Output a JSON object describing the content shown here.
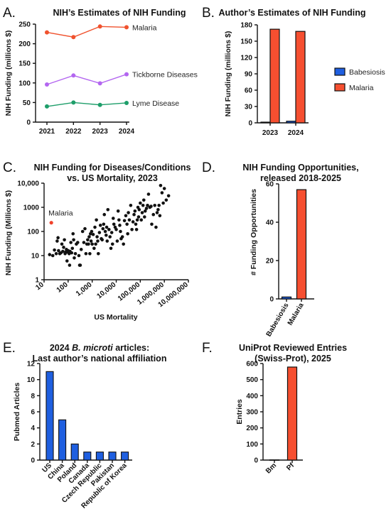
{
  "panel_labels": [
    "A.",
    "B.",
    "C.",
    "D.",
    "E.",
    "F."
  ],
  "chart_data": [
    {
      "id": "A",
      "type": "line",
      "title": "NIH’s Estimates of NIH Funding",
      "xlabel": "",
      "ylabel": "NIH Funding (millions $)",
      "categories": [
        "2021",
        "2022",
        "2023",
        "2024"
      ],
      "ylim": [
        0,
        250
      ],
      "yticks": [
        0,
        50,
        100,
        150,
        200,
        250
      ],
      "series": [
        {
          "name": "Malaria",
          "color": "#f0522e",
          "values": [
            229,
            217,
            244,
            242
          ]
        },
        {
          "name": "Tickborne Diseases",
          "color": "#b366f0",
          "values": [
            96,
            119,
            99,
            122
          ]
        },
        {
          "name": "Lyme Disease",
          "color": "#1e9e6a",
          "values": [
            40,
            50,
            44,
            49
          ]
        }
      ]
    },
    {
      "id": "B",
      "type": "bar",
      "title": "Author’s Estimates of NIH Funding",
      "xlabel": "",
      "ylabel": "NIH Funding (millions $)",
      "categories": [
        "2023",
        "2024"
      ],
      "ylim": [
        0,
        180
      ],
      "yticks": [
        0,
        30,
        60,
        90,
        120,
        150,
        180
      ],
      "legend_position": "right",
      "series": [
        {
          "name": "Babesiosis",
          "color": "#1f5fe0",
          "values": [
            1.3,
            3.0
          ]
        },
        {
          "name": "Malaria",
          "color": "#f64f30",
          "values": [
            172,
            168
          ]
        }
      ]
    },
    {
      "id": "C",
      "type": "scatter",
      "title": "NIH Funding for Diseases/Conditions",
      "subtitle": "vs. US Mortality, 2023",
      "xlabel": "US Mortality",
      "ylabel": "NIH Funding (Millions $)",
      "xscale": "log",
      "yscale": "log",
      "xlim": [
        10,
        10000000
      ],
      "ylim": [
        1,
        10000
      ],
      "xticks": [
        "10",
        "100",
        "1,000",
        "10,000",
        "100,000",
        "1,000,000",
        "10,000,000"
      ],
      "yticks": [
        "1",
        "10",
        "100",
        "1000",
        "10,000"
      ],
      "highlight": {
        "label": "Malaria",
        "color": "#f0412a",
        "x": 20,
        "y": 230
      },
      "points": [
        [
          17,
          11
        ],
        [
          23,
          10
        ],
        [
          27,
          17
        ],
        [
          32,
          12
        ],
        [
          35,
          40
        ],
        [
          38,
          55
        ],
        [
          40,
          16
        ],
        [
          45,
          12
        ],
        [
          50,
          13
        ],
        [
          55,
          30
        ],
        [
          60,
          15
        ],
        [
          65,
          22
        ],
        [
          70,
          45
        ],
        [
          75,
          12
        ],
        [
          80,
          14
        ],
        [
          85,
          18
        ],
        [
          90,
          6
        ],
        [
          95,
          14
        ],
        [
          100,
          16
        ],
        [
          110,
          12
        ],
        [
          115,
          4
        ],
        [
          120,
          15
        ],
        [
          130,
          35
        ],
        [
          140,
          13
        ],
        [
          150,
          20
        ],
        [
          160,
          80
        ],
        [
          170,
          45
        ],
        [
          180,
          8
        ],
        [
          200,
          12
        ],
        [
          220,
          30
        ],
        [
          250,
          35
        ],
        [
          280,
          10
        ],
        [
          300,
          4
        ],
        [
          320,
          4
        ],
        [
          350,
          18
        ],
        [
          400,
          100
        ],
        [
          450,
          35
        ],
        [
          500,
          130
        ],
        [
          550,
          12
        ],
        [
          600,
          30
        ],
        [
          650,
          45
        ],
        [
          700,
          30
        ],
        [
          750,
          60
        ],
        [
          800,
          12
        ],
        [
          850,
          80
        ],
        [
          900,
          40
        ],
        [
          950,
          100
        ],
        [
          1000,
          30
        ],
        [
          1100,
          75
        ],
        [
          1200,
          20
        ],
        [
          1300,
          150
        ],
        [
          1400,
          30
        ],
        [
          1500,
          300
        ],
        [
          1600,
          60
        ],
        [
          1700,
          40
        ],
        [
          1800,
          12
        ],
        [
          2000,
          90
        ],
        [
          2200,
          180
        ],
        [
          2400,
          50
        ],
        [
          2600,
          45
        ],
        [
          2800,
          130
        ],
        [
          3000,
          200
        ],
        [
          3200,
          500
        ],
        [
          3500,
          100
        ],
        [
          3800,
          70
        ],
        [
          4000,
          150
        ],
        [
          4200,
          40
        ],
        [
          4500,
          800
        ],
        [
          5000,
          120
        ],
        [
          5500,
          60
        ],
        [
          6000,
          20
        ],
        [
          6500,
          90
        ],
        [
          7000,
          30
        ],
        [
          7500,
          350
        ],
        [
          8000,
          200
        ],
        [
          9000,
          150
        ],
        [
          10000,
          120
        ],
        [
          11000,
          40
        ],
        [
          12000,
          700
        ],
        [
          13000,
          300
        ],
        [
          14000,
          180
        ],
        [
          15000,
          100
        ],
        [
          16000,
          50
        ],
        [
          18000,
          60
        ],
        [
          20000,
          30
        ],
        [
          22000,
          280
        ],
        [
          25000,
          450
        ],
        [
          28000,
          200
        ],
        [
          30000,
          80
        ],
        [
          32000,
          600
        ],
        [
          35000,
          300
        ],
        [
          40000,
          1200
        ],
        [
          45000,
          120
        ],
        [
          50000,
          250
        ],
        [
          55000,
          500
        ],
        [
          60000,
          700
        ],
        [
          65000,
          200
        ],
        [
          70000,
          120
        ],
        [
          75000,
          300
        ],
        [
          80000,
          1000
        ],
        [
          85000,
          400
        ],
        [
          90000,
          800
        ],
        [
          100000,
          1500
        ],
        [
          110000,
          300
        ],
        [
          120000,
          600
        ],
        [
          130000,
          1200
        ],
        [
          140000,
          2000
        ],
        [
          150000,
          400
        ],
        [
          160000,
          700
        ],
        [
          180000,
          900
        ],
        [
          200000,
          1200
        ],
        [
          220000,
          3500
        ],
        [
          250000,
          1000
        ],
        [
          280000,
          1100
        ],
        [
          300000,
          200
        ],
        [
          350000,
          500
        ],
        [
          400000,
          1200
        ],
        [
          450000,
          150
        ],
        [
          500000,
          600
        ],
        [
          550000,
          800
        ],
        [
          600000,
          1200
        ],
        [
          650000,
          450
        ],
        [
          700000,
          8000
        ],
        [
          800000,
          4000
        ],
        [
          900000,
          1500
        ],
        [
          1000000,
          6000
        ],
        [
          1200000,
          2000
        ],
        [
          1500000,
          3000
        ]
      ]
    },
    {
      "id": "D",
      "type": "bar",
      "title": "NIH Funding Opportunities,",
      "subtitle": "released 2018-2025",
      "xlabel": "",
      "ylabel": "# Funding Opportunities",
      "categories": [
        "Babesiosis",
        "Malaria"
      ],
      "values": [
        1,
        57
      ],
      "colors": [
        "#1f5fe0",
        "#f64f30"
      ],
      "ylim": [
        0,
        60
      ],
      "yticks": [
        0,
        20,
        40,
        60
      ]
    },
    {
      "id": "E",
      "type": "bar",
      "title": "2024 B. microti articles:",
      "title_parts": [
        "2024 ",
        "B. microti",
        " articles:"
      ],
      "subtitle": "Last author’s national affiliation",
      "xlabel": "",
      "ylabel": "Pubmed Articles",
      "categories": [
        "US",
        "China",
        "Poland",
        "Canada",
        "Czech Republic",
        "Pakistan",
        "Republic of Korea"
      ],
      "values": [
        11,
        5,
        2,
        1,
        1,
        1,
        1
      ],
      "color": "#1f5fe0",
      "ylim": [
        0,
        12
      ],
      "yticks": [
        0,
        2,
        4,
        6,
        8,
        10,
        12
      ]
    },
    {
      "id": "F",
      "type": "bar",
      "title": "UniProt Reviewed Entries",
      "subtitle": "(Swiss-Prot), 2025",
      "xlabel": "",
      "ylabel": "Entries",
      "categories": [
        "Bm",
        "Pf"
      ],
      "values": [
        1,
        578
      ],
      "colors": [
        "#1f5fe0",
        "#f64f30"
      ],
      "ylim": [
        0,
        600
      ],
      "yticks": [
        0,
        100,
        200,
        300,
        400,
        500,
        600
      ]
    }
  ]
}
